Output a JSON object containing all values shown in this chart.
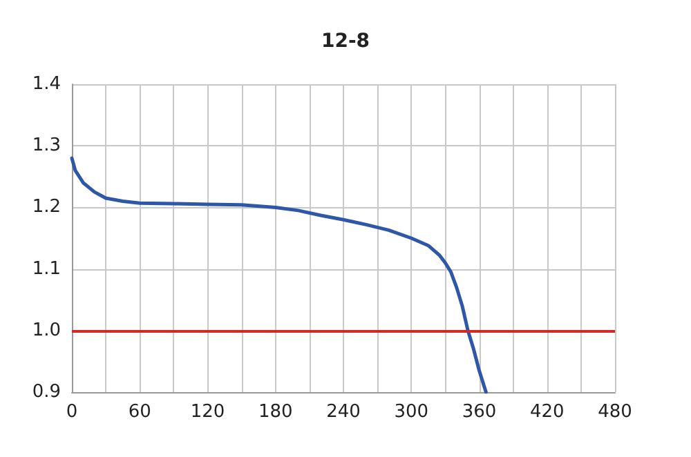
{
  "chart_data": {
    "type": "line",
    "title": "12-8",
    "x": [
      0,
      3,
      10,
      20,
      30,
      45,
      60,
      90,
      120,
      150,
      180,
      200,
      220,
      240,
      260,
      280,
      300,
      315,
      325,
      330,
      335,
      340,
      345,
      350,
      355,
      360,
      366
    ],
    "series": [
      {
        "color": "#2e57a8",
        "values": [
          1.28,
          1.26,
          1.24,
          1.225,
          1.215,
          1.21,
          1.207,
          1.206,
          1.205,
          1.204,
          1.2,
          1.195,
          1.187,
          1.18,
          1.172,
          1.163,
          1.15,
          1.138,
          1.122,
          1.11,
          1.095,
          1.07,
          1.04,
          1.0,
          0.97,
          0.935,
          0.9
        ]
      }
    ],
    "xlim": [
      0,
      480
    ],
    "xticks": [
      0,
      {
        "value": 30,
        "label": null
      },
      60,
      {
        "value": 90,
        "label": null
      },
      120,
      {
        "value": 150,
        "label": null
      },
      180,
      {
        "value": 210,
        "label": null
      },
      240,
      {
        "value": 270,
        "label": null
      },
      300,
      {
        "value": 330,
        "label": null
      },
      360,
      {
        "value": 390,
        "label": null
      },
      420,
      {
        "value": 450,
        "label": null
      },
      480
    ],
    "ylim": [
      0.9,
      1.4
    ],
    "yticks": [
      {
        "value": 0.9,
        "label": "0.9"
      },
      {
        "value": 1.0,
        "label": "1.0"
      },
      {
        "value": 1.1,
        "label": "1.1"
      },
      {
        "value": 1.2,
        "label": "1.2"
      },
      {
        "value": 1.3,
        "label": "1.3"
      },
      {
        "value": 1.4,
        "label": "1.4"
      }
    ],
    "ref_lines": [
      {
        "axis": "y",
        "value": 1.0,
        "color": "#d02a2a"
      }
    ],
    "grid": true,
    "marker": "none",
    "line_style": "solid"
  }
}
